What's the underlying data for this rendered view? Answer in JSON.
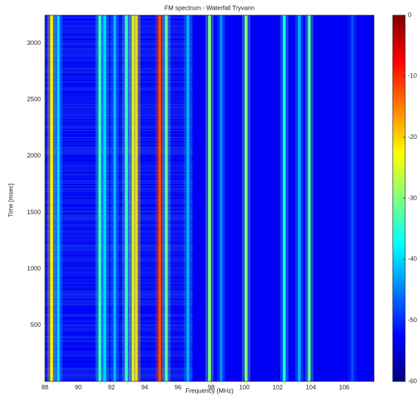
{
  "chart_data": {
    "type": "heatmap",
    "title": "FM spectrum - Waterfall Tryvann",
    "xlabel": "Frequency (MHz)",
    "ylabel": "Time [msec]",
    "xlim": [
      88,
      107.8
    ],
    "xticks": [
      88,
      90,
      92,
      94,
      96,
      98,
      100,
      102,
      104,
      106
    ],
    "ylim": [
      0,
      3250
    ],
    "yticks": [
      500,
      1000,
      1500,
      2000,
      2500,
      3000
    ],
    "clim": [
      -60,
      0
    ],
    "cticks": [
      0,
      -10,
      -20,
      -30,
      -40,
      -50,
      -60
    ],
    "background": -53,
    "x": [
      88.4,
      88.8,
      91.3,
      91.6,
      92.2,
      92.9,
      93.3,
      93.5,
      94.9,
      95.3,
      96.6,
      97.9,
      98.6,
      100.1,
      102.4,
      103.3,
      103.9,
      106.5
    ],
    "values": [
      -22,
      -40,
      -34,
      -40,
      -42,
      -34,
      -26,
      -20,
      -12,
      -32,
      -42,
      -30,
      -44,
      -30,
      -36,
      -42,
      -32,
      -48
    ]
  }
}
